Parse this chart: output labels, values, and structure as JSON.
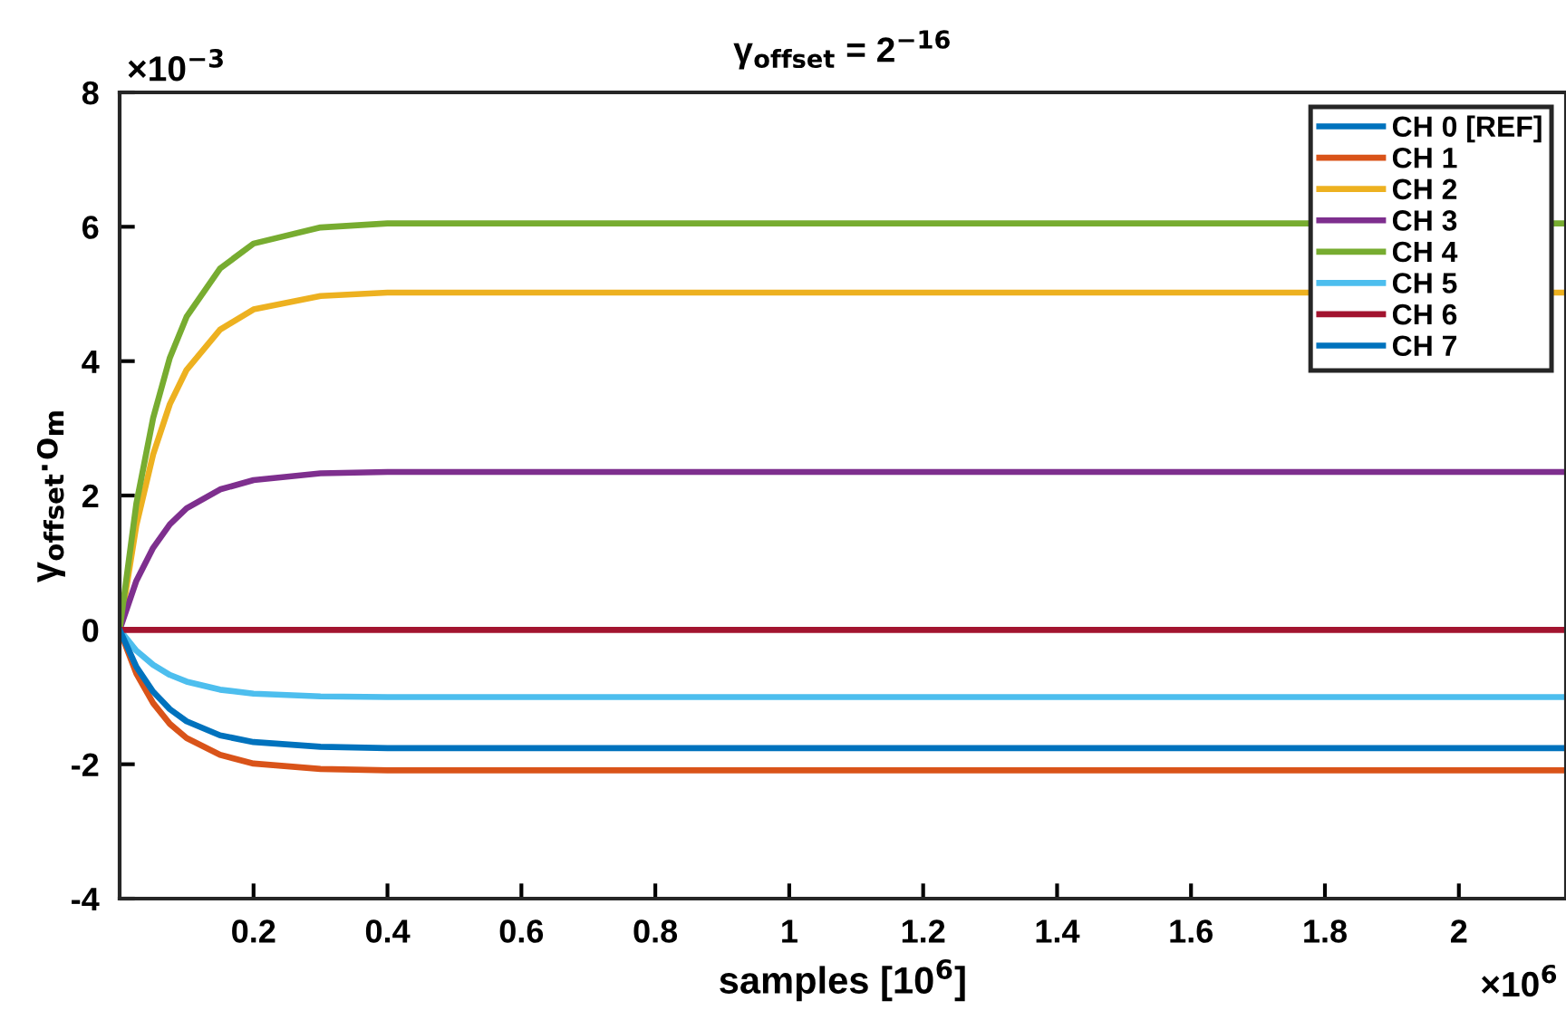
{
  "chart_data": {
    "type": "line",
    "title": "γ$_{offset}$ = 2$^{−16}$",
    "xlabel": "samples [10$^{6}$]",
    "ylabel": "γ$_{offset}$·o$_{m}$",
    "annotations": [
      "×10$^{−3}$",
      "×10$^{6}$"
    ],
    "x": [
      0,
      0.025,
      0.05,
      0.075,
      0.1,
      0.15,
      0.2,
      0.3,
      0.4,
      0.6,
      1.0,
      1.5,
      2.16
    ],
    "series": [
      {
        "name": "CH 0 [REF]",
        "color": "#0072bd",
        "values": [
          null,
          null,
          null,
          null,
          null,
          null,
          null,
          null,
          null,
          null,
          null,
          null,
          null
        ]
      },
      {
        "name": "CH 1",
        "color": "#d95319",
        "values": [
          0,
          -0.65,
          -1.09,
          -1.4,
          -1.61,
          -1.86,
          -1.99,
          -2.07,
          -2.09,
          -2.09,
          -2.09,
          -2.09,
          -2.09
        ]
      },
      {
        "name": "CH 2",
        "color": "#edb120",
        "values": [
          0,
          1.56,
          2.61,
          3.36,
          3.87,
          4.47,
          4.77,
          4.97,
          5.02,
          5.02,
          5.02,
          5.02,
          5.02
        ]
      },
      {
        "name": "CH 3",
        "color": "#7e2f8e",
        "values": [
          0,
          0.73,
          1.22,
          1.57,
          1.81,
          2.09,
          2.23,
          2.33,
          2.35,
          2.35,
          2.35,
          2.35,
          2.35
        ]
      },
      {
        "name": "CH 4",
        "color": "#77ac30",
        "values": [
          0,
          1.88,
          3.15,
          4.05,
          4.66,
          5.38,
          5.75,
          5.99,
          6.05,
          6.05,
          6.05,
          6.05,
          6.05
        ]
      },
      {
        "name": "CH 5",
        "color": "#4dbeee",
        "values": [
          0,
          -0.31,
          -0.52,
          -0.67,
          -0.77,
          -0.89,
          -0.95,
          -0.99,
          -1.0,
          -1.0,
          -1.0,
          -1.0,
          -1.0
        ]
      },
      {
        "name": "CH 6",
        "color": "#a2142f",
        "values": [
          0,
          0,
          0,
          0,
          0,
          0,
          0,
          0,
          0,
          0,
          0,
          0,
          0
        ]
      },
      {
        "name": "CH 7",
        "color": "#0072bd",
        "values": [
          0,
          -0.55,
          -0.92,
          -1.18,
          -1.36,
          -1.57,
          -1.67,
          -1.74,
          -1.76,
          -1.76,
          -1.76,
          -1.76,
          -1.76
        ]
      }
    ],
    "xlim": [
      0,
      2.16
    ],
    "xticks": [
      0.2,
      0.4,
      0.6,
      0.8,
      1,
      1.2,
      1.4,
      1.6,
      1.8,
      2
    ],
    "ylim": [
      -4,
      8
    ],
    "yticks": [
      -4,
      -2,
      0,
      2,
      4,
      6,
      8
    ],
    "grid": false,
    "legend": "top right",
    "marker": "none",
    "line_style": "solid"
  }
}
